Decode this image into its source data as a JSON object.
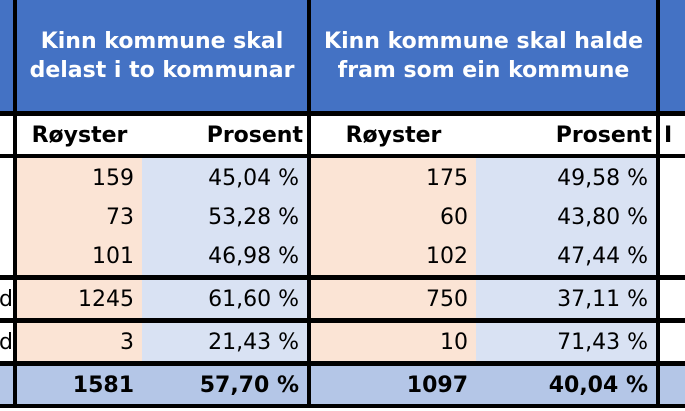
{
  "header": {
    "col1_title": "Kinn kommune skal delast i to kommunar",
    "col2_title": "Kinn kommune skal halde fram som ein kommune"
  },
  "subheader": {
    "votes_label_1": "Røyster",
    "percent_label_1": "Prosent",
    "votes_label_2": "Røyster",
    "percent_label_2": "Prosent",
    "clipped_label": "I"
  },
  "rows": [
    {
      "clipped": "",
      "votes1": "159",
      "pct1": "45,04 %",
      "votes2": "175",
      "pct2": "49,58 %"
    },
    {
      "clipped": "",
      "votes1": "73",
      "pct1": "53,28 %",
      "votes2": "60",
      "pct2": "43,80 %"
    },
    {
      "clipped": "",
      "votes1": "101",
      "pct1": "46,98 %",
      "votes2": "102",
      "pct2": "47,44 %"
    },
    {
      "clipped": "d",
      "votes1": "1245",
      "pct1": "61,60 %",
      "votes2": "750",
      "pct2": "37,11 %"
    },
    {
      "clipped": "d",
      "votes1": "3",
      "pct1": "21,43 %",
      "votes2": "10",
      "pct2": "71,43 %"
    }
  ],
  "total": {
    "votes1": "1581",
    "pct1": "57,70 %",
    "votes2": "1097",
    "pct2": "40,04 %"
  }
}
